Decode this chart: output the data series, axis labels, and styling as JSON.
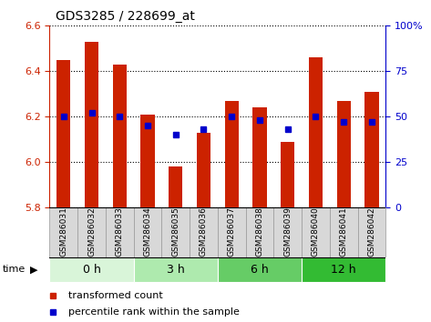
{
  "title": "GDS3285 / 228699_at",
  "samples": [
    "GSM286031",
    "GSM286032",
    "GSM286033",
    "GSM286034",
    "GSM286035",
    "GSM286036",
    "GSM286037",
    "GSM286038",
    "GSM286039",
    "GSM286040",
    "GSM286041",
    "GSM286042"
  ],
  "transformed_counts": [
    6.45,
    6.53,
    6.43,
    6.21,
    5.98,
    6.13,
    6.27,
    6.24,
    6.09,
    6.46,
    6.27,
    6.31
  ],
  "percentile_ranks": [
    50,
    52,
    50,
    45,
    40,
    43,
    50,
    48,
    43,
    50,
    47,
    47
  ],
  "y_min": 5.8,
  "y_max": 6.6,
  "y_ticks": [
    5.8,
    6.0,
    6.2,
    6.4,
    6.6
  ],
  "right_y_ticks": [
    0,
    25,
    50,
    75,
    100
  ],
  "groups": [
    {
      "label": "0 h",
      "start": 0,
      "end": 3,
      "color": "#d9f5d9"
    },
    {
      "label": "3 h",
      "start": 3,
      "end": 6,
      "color": "#aeeaae"
    },
    {
      "label": "6 h",
      "start": 6,
      "end": 9,
      "color": "#66cc66"
    },
    {
      "label": "12 h",
      "start": 9,
      "end": 12,
      "color": "#33bb33"
    }
  ],
  "bar_color": "#cc2200",
  "percentile_color": "#0000cc",
  "bar_width": 0.5,
  "background_color": "#ffffff",
  "plot_bg_color": "#ffffff",
  "tick_label_color_left": "#cc2200",
  "tick_label_color_right": "#0000cc",
  "legend_entries": [
    "transformed count",
    "percentile rank within the sample"
  ],
  "sample_box_color": "#d8d8d8",
  "sample_box_edge_color": "#999999"
}
